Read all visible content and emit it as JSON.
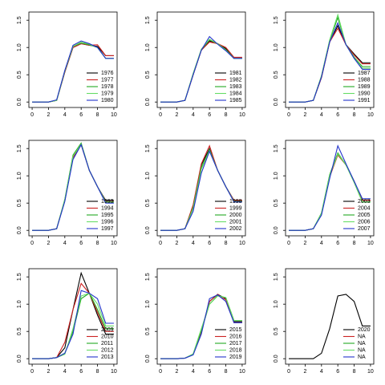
{
  "chart_data": [
    {
      "type": "line",
      "x": [
        0,
        1,
        2,
        3,
        4,
        5,
        6,
        7,
        8,
        9,
        10
      ],
      "xlim": [
        -0.4,
        10.4
      ],
      "ylim": [
        -0.1,
        1.65
      ],
      "xticks": [
        0,
        2,
        4,
        6,
        8,
        10
      ],
      "yticks": [
        {
          "value": 0,
          "label": "0.0"
        },
        0.5,
        {
          "value": 1,
          "label": "1.0"
        },
        1.5
      ],
      "legend": "bottomright",
      "series": [
        {
          "name": "1976",
          "color": "#000000",
          "values": [
            0,
            0,
            0,
            0.03,
            0.55,
            1.0,
            1.07,
            1.04,
            1.02,
            0.85,
            0.85
          ]
        },
        {
          "name": "1977",
          "color": "#cc2222",
          "values": [
            0,
            0,
            0,
            0.03,
            0.55,
            1.0,
            1.07,
            1.04,
            1.05,
            0.85,
            0.85
          ]
        },
        {
          "name": "1978",
          "color": "#22aa22",
          "values": [
            0,
            0,
            0,
            0.03,
            0.57,
            1.02,
            1.08,
            1.05,
            1.0,
            0.8,
            0.8
          ]
        },
        {
          "name": "1979",
          "color": "#66dd66",
          "values": [
            0,
            0,
            0,
            0.03,
            0.57,
            1.02,
            1.1,
            1.06,
            1.0,
            0.8,
            0.8
          ]
        },
        {
          "name": "1980",
          "color": "#2233cc",
          "values": [
            0,
            0,
            0,
            0.04,
            0.58,
            1.04,
            1.12,
            1.07,
            1.0,
            0.8,
            0.8
          ]
        }
      ]
    },
    {
      "type": "line",
      "x": [
        0,
        1,
        2,
        3,
        4,
        5,
        6,
        7,
        8,
        9,
        10
      ],
      "xlim": [
        -0.4,
        10.4
      ],
      "ylim": [
        -0.1,
        1.65
      ],
      "xticks": [
        0,
        2,
        4,
        6,
        8,
        10
      ],
      "yticks": [
        {
          "value": 0,
          "label": "0.0"
        },
        0.5,
        {
          "value": 1,
          "label": "1.0"
        },
        1.5
      ],
      "legend": "bottomright",
      "series": [
        {
          "name": "1981",
          "color": "#000000",
          "values": [
            0,
            0,
            0,
            0.03,
            0.5,
            0.95,
            1.12,
            1.07,
            0.98,
            0.8,
            0.8
          ]
        },
        {
          "name": "1982",
          "color": "#cc2222",
          "values": [
            0,
            0,
            0,
            0.03,
            0.5,
            0.95,
            1.1,
            1.07,
            1.0,
            0.82,
            0.82
          ]
        },
        {
          "name": "1983",
          "color": "#22aa22",
          "values": [
            0,
            0,
            0,
            0.03,
            0.52,
            0.96,
            1.14,
            1.07,
            0.96,
            0.8,
            0.8
          ]
        },
        {
          "name": "1984",
          "color": "#66dd66",
          "values": [
            0,
            0,
            0,
            0.03,
            0.52,
            0.97,
            1.15,
            1.07,
            0.95,
            0.8,
            0.8
          ]
        },
        {
          "name": "1985",
          "color": "#2233cc",
          "values": [
            0,
            0,
            0,
            0.03,
            0.5,
            0.95,
            1.2,
            1.06,
            0.94,
            0.8,
            0.8
          ]
        }
      ]
    },
    {
      "type": "line",
      "x": [
        0,
        1,
        2,
        3,
        4,
        5,
        6,
        7,
        8,
        9,
        10
      ],
      "xlim": [
        -0.4,
        10.4
      ],
      "ylim": [
        -0.1,
        1.65
      ],
      "xticks": [
        0,
        2,
        4,
        6,
        8,
        10
      ],
      "yticks": [
        {
          "value": 0,
          "label": "0.0"
        },
        0.5,
        {
          "value": 1,
          "label": "1.0"
        },
        1.5
      ],
      "legend": "bottomright",
      "series": [
        {
          "name": "1987",
          "color": "#000000",
          "values": [
            0,
            0,
            0,
            0.03,
            0.45,
            1.1,
            1.4,
            1.05,
            0.88,
            0.72,
            0.72
          ]
        },
        {
          "name": "1988",
          "color": "#cc2222",
          "values": [
            0,
            0,
            0,
            0.03,
            0.45,
            1.1,
            1.35,
            1.05,
            0.86,
            0.7,
            0.7
          ]
        },
        {
          "name": "1989",
          "color": "#22aa22",
          "values": [
            0,
            0,
            0,
            0.03,
            0.48,
            1.12,
            1.55,
            1.05,
            0.82,
            0.65,
            0.65
          ]
        },
        {
          "name": "1990",
          "color": "#66dd66",
          "values": [
            0,
            0,
            0,
            0.03,
            0.48,
            1.14,
            1.6,
            1.05,
            0.8,
            0.62,
            0.62
          ]
        },
        {
          "name": "1991",
          "color": "#2233cc",
          "values": [
            0,
            0,
            0,
            0.03,
            0.46,
            1.1,
            1.45,
            1.05,
            0.8,
            0.6,
            0.6
          ]
        }
      ]
    },
    {
      "type": "line",
      "x": [
        0,
        1,
        2,
        3,
        4,
        5,
        6,
        7,
        8,
        9,
        10
      ],
      "xlim": [
        -0.4,
        10.4
      ],
      "ylim": [
        -0.1,
        1.65
      ],
      "xticks": [
        0,
        2,
        4,
        6,
        8,
        10
      ],
      "yticks": [
        {
          "value": 0,
          "label": "0.0"
        },
        0.5,
        {
          "value": 1,
          "label": "1.0"
        },
        1.5
      ],
      "legend": "bottomright",
      "series": [
        {
          "name": "1993",
          "color": "#000000",
          "values": [
            0,
            0,
            0,
            0.03,
            0.55,
            1.35,
            1.58,
            1.1,
            0.8,
            0.55,
            0.55
          ]
        },
        {
          "name": "1994",
          "color": "#cc2222",
          "values": [
            0,
            0,
            0,
            0.03,
            0.55,
            1.33,
            1.57,
            1.1,
            0.8,
            0.53,
            0.53
          ]
        },
        {
          "name": "1995",
          "color": "#22aa22",
          "values": [
            0,
            0,
            0,
            0.03,
            0.57,
            1.38,
            1.6,
            1.1,
            0.8,
            0.52,
            0.52
          ]
        },
        {
          "name": "1996",
          "color": "#66dd66",
          "values": [
            0,
            0,
            0,
            0.03,
            0.56,
            1.36,
            1.58,
            1.1,
            0.8,
            0.52,
            0.52
          ]
        },
        {
          "name": "1997",
          "color": "#2233cc",
          "values": [
            0,
            0,
            0,
            0.03,
            0.53,
            1.3,
            1.57,
            1.1,
            0.8,
            0.5,
            0.5
          ]
        }
      ]
    },
    {
      "type": "line",
      "x": [
        0,
        1,
        2,
        3,
        4,
        5,
        6,
        7,
        8,
        9,
        10
      ],
      "xlim": [
        -0.4,
        10.4
      ],
      "ylim": [
        -0.1,
        1.65
      ],
      "xticks": [
        0,
        2,
        4,
        6,
        8,
        10
      ],
      "yticks": [
        {
          "value": 0,
          "label": "0.0"
        },
        0.5,
        {
          "value": 1,
          "label": "1.0"
        },
        1.5
      ],
      "legend": "bottomright",
      "series": [
        {
          "name": "1998",
          "color": "#000000",
          "values": [
            0,
            0,
            0,
            0.03,
            0.45,
            1.2,
            1.5,
            1.1,
            0.8,
            0.55,
            0.55
          ]
        },
        {
          "name": "1999",
          "color": "#cc2222",
          "values": [
            0,
            0,
            0,
            0.03,
            0.47,
            1.22,
            1.55,
            1.1,
            0.8,
            0.55,
            0.55
          ]
        },
        {
          "name": "2000",
          "color": "#22aa22",
          "values": [
            0,
            0,
            0,
            0.03,
            0.42,
            1.15,
            1.48,
            1.1,
            0.8,
            0.53,
            0.53
          ]
        },
        {
          "name": "2001",
          "color": "#66dd66",
          "values": [
            0,
            0,
            0,
            0.03,
            0.4,
            1.12,
            1.46,
            1.1,
            0.8,
            0.53,
            0.53
          ]
        },
        {
          "name": "2002",
          "color": "#2233cc",
          "values": [
            0,
            0,
            0,
            0.03,
            0.35,
            1.05,
            1.45,
            1.1,
            0.8,
            0.52,
            0.52
          ]
        }
      ]
    },
    {
      "type": "line",
      "x": [
        0,
        1,
        2,
        3,
        4,
        5,
        6,
        7,
        8,
        9,
        10
      ],
      "xlim": [
        -0.4,
        10.4
      ],
      "ylim": [
        -0.1,
        1.65
      ],
      "xticks": [
        0,
        2,
        4,
        6,
        8,
        10
      ],
      "yticks": [
        {
          "value": 0,
          "label": "0.0"
        },
        0.5,
        {
          "value": 1,
          "label": "1.0"
        },
        1.5
      ],
      "legend": "bottomright",
      "series": [
        {
          "name": "2003",
          "color": "#000000",
          "values": [
            0,
            0,
            0,
            0.03,
            0.3,
            1.0,
            1.4,
            1.2,
            0.9,
            0.55,
            0.55
          ]
        },
        {
          "name": "2004",
          "color": "#cc2222",
          "values": [
            0,
            0,
            0,
            0.03,
            0.3,
            0.98,
            1.38,
            1.2,
            0.9,
            0.55,
            0.55
          ]
        },
        {
          "name": "2005",
          "color": "#22aa22",
          "values": [
            0,
            0,
            0,
            0.03,
            0.32,
            1.02,
            1.42,
            1.2,
            0.88,
            0.52,
            0.52
          ]
        },
        {
          "name": "2006",
          "color": "#66dd66",
          "values": [
            0,
            0,
            0,
            0.03,
            0.31,
            1.0,
            1.4,
            1.2,
            0.88,
            0.52,
            0.52
          ]
        },
        {
          "name": "2007",
          "color": "#2233cc",
          "values": [
            0,
            0,
            0,
            0.03,
            0.28,
            0.95,
            1.55,
            1.22,
            0.9,
            0.58,
            0.58
          ]
        }
      ]
    },
    {
      "type": "line",
      "x": [
        0,
        1,
        2,
        3,
        4,
        5,
        6,
        7,
        8,
        9,
        10
      ],
      "xlim": [
        -0.4,
        10.4
      ],
      "ylim": [
        -0.1,
        1.65
      ],
      "xticks": [
        0,
        2,
        4,
        6,
        8,
        10
      ],
      "yticks": [
        {
          "value": 0,
          "label": "0.0"
        },
        0.5,
        {
          "value": 1,
          "label": "1.0"
        },
        1.5
      ],
      "legend": "bottomright",
      "series": [
        {
          "name": "2009",
          "color": "#000000",
          "values": [
            0,
            0,
            0,
            0.02,
            0.2,
            0.9,
            1.57,
            1.2,
            0.8,
            0.45,
            0.45
          ]
        },
        {
          "name": "2010",
          "color": "#cc2222",
          "values": [
            0,
            0,
            0,
            0.02,
            0.3,
            0.9,
            1.38,
            1.2,
            0.85,
            0.5,
            0.5
          ]
        },
        {
          "name": "2011",
          "color": "#22aa22",
          "values": [
            0,
            0,
            0,
            0.02,
            0.1,
            0.5,
            1.1,
            1.2,
            0.9,
            0.55,
            0.55
          ]
        },
        {
          "name": "2012",
          "color": "#66dd66",
          "values": [
            0,
            0,
            0,
            0.02,
            0.08,
            0.55,
            1.15,
            1.2,
            1.0,
            0.6,
            0.6
          ]
        },
        {
          "name": "2013",
          "color": "#2233cc",
          "values": [
            0,
            0,
            0,
            0.02,
            0.1,
            0.45,
            1.25,
            1.2,
            1.1,
            0.65,
            0.65
          ]
        }
      ]
    },
    {
      "type": "line",
      "x": [
        0,
        1,
        2,
        3,
        4,
        5,
        6,
        7,
        8,
        9,
        10
      ],
      "xlim": [
        -0.4,
        10.4
      ],
      "ylim": [
        -0.1,
        1.65
      ],
      "xticks": [
        0,
        2,
        4,
        6,
        8,
        10
      ],
      "yticks": [
        {
          "value": 0,
          "label": "0.0"
        },
        0.5,
        {
          "value": 1,
          "label": "1.0"
        },
        1.5
      ],
      "legend": "bottomright",
      "series": [
        {
          "name": "2015",
          "color": "#000000",
          "values": [
            0,
            0,
            0,
            0.01,
            0.08,
            0.5,
            1.05,
            1.18,
            1.1,
            0.68,
            0.68
          ]
        },
        {
          "name": "2016",
          "color": "#cc2222",
          "values": [
            0,
            0,
            0,
            0.01,
            0.08,
            0.5,
            1.05,
            1.18,
            1.08,
            0.66,
            0.66
          ]
        },
        {
          "name": "2017",
          "color": "#22aa22",
          "values": [
            0,
            0,
            0,
            0.01,
            0.08,
            0.52,
            1.0,
            1.16,
            1.12,
            0.7,
            0.7
          ]
        },
        {
          "name": "2018",
          "color": "#66dd66",
          "values": [
            0,
            0,
            0,
            0.01,
            0.09,
            0.55,
            1.0,
            1.15,
            1.12,
            0.7,
            0.7
          ]
        },
        {
          "name": "2019",
          "color": "#2233cc",
          "values": [
            0,
            0,
            0,
            0.01,
            0.07,
            0.45,
            1.1,
            1.17,
            1.05,
            0.66,
            0.66
          ]
        }
      ]
    },
    {
      "type": "line",
      "x": [
        0,
        1,
        2,
        3,
        4,
        5,
        6,
        7,
        8,
        9,
        10
      ],
      "xlim": [
        -0.4,
        10.4
      ],
      "ylim": [
        -0.1,
        1.65
      ],
      "xticks": [
        0,
        2,
        4,
        6,
        8,
        10
      ],
      "yticks": [
        {
          "value": 0,
          "label": "0.0"
        },
        0.5,
        {
          "value": 1,
          "label": "1.0"
        },
        1.5
      ],
      "legend": "bottomright",
      "series": [
        {
          "name": "2020",
          "color": "#000000",
          "values": [
            0,
            0,
            0,
            0,
            0.1,
            0.55,
            1.15,
            1.18,
            1.05,
            0.6,
            0.6
          ]
        },
        {
          "name": "NA",
          "color": "#cc2222",
          "values": [
            null,
            null,
            null,
            null,
            null,
            null,
            null,
            null,
            null,
            null,
            null
          ]
        },
        {
          "name": "NA",
          "color": "#22aa22",
          "values": [
            null,
            null,
            null,
            null,
            null,
            null,
            null,
            null,
            null,
            null,
            null
          ]
        },
        {
          "name": "NA",
          "color": "#66dd66",
          "values": [
            null,
            null,
            null,
            null,
            null,
            null,
            null,
            null,
            null,
            null,
            null
          ]
        },
        {
          "name": "NA",
          "color": "#2233cc",
          "values": [
            null,
            null,
            null,
            null,
            null,
            null,
            null,
            null,
            null,
            null,
            null
          ]
        }
      ]
    }
  ]
}
